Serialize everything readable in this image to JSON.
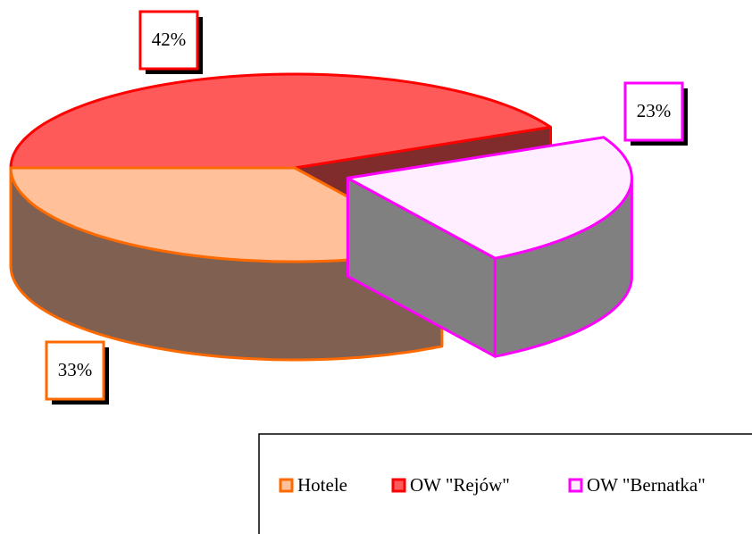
{
  "chart_data": {
    "type": "pie",
    "categories": [
      "Hotele",
      "OW \"Rejów\"",
      "OW \"Bernatka\""
    ],
    "values": [
      33,
      42,
      23
    ],
    "value_labels": [
      "33%",
      "42%",
      "23%"
    ],
    "colors": [
      "#ffc09a",
      "#ff5a5a",
      "#ffeeff"
    ],
    "border_colors": [
      "#ff6a00",
      "#ff0000",
      "#ff00ff"
    ],
    "side_colors": [
      "#806050",
      "#802c2c",
      "#808080"
    ],
    "exploded": [
      false,
      false,
      true
    ],
    "legend": "bottom-right"
  }
}
